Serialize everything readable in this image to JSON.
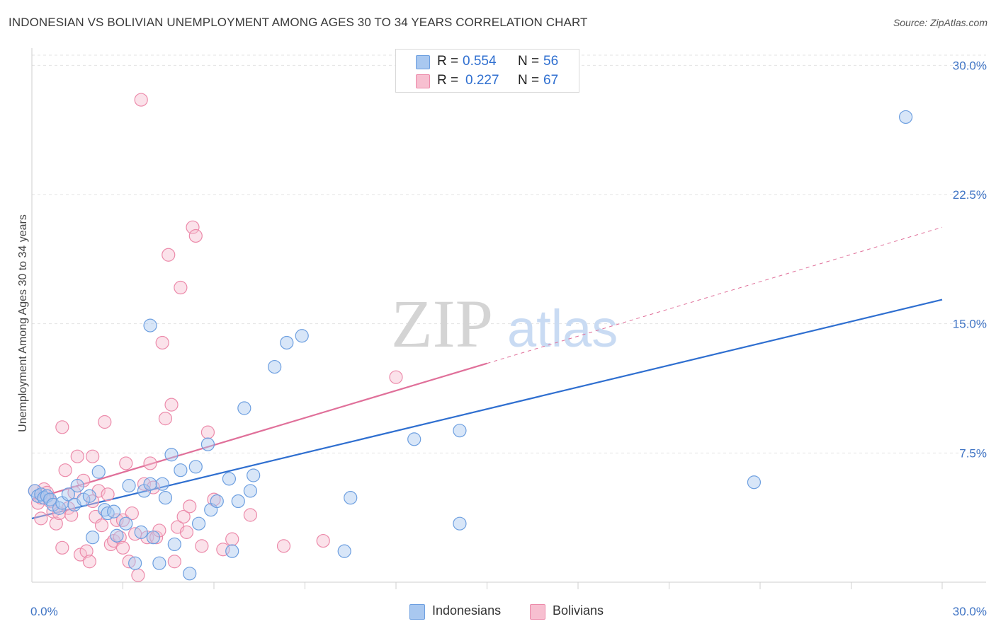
{
  "title": "INDONESIAN VS BOLIVIAN UNEMPLOYMENT AMONG AGES 30 TO 34 YEARS CORRELATION CHART",
  "source": "Source: ZipAtlas.com",
  "watermark": {
    "zip": "ZIP",
    "atlas": "atlas"
  },
  "legend": {
    "indonesians": {
      "r_label": "R =",
      "r_value": "0.554",
      "n_label": "N =",
      "n_value": "56"
    },
    "bolivians": {
      "r_label": "R =",
      "r_value": "0.227",
      "n_label": "N =",
      "n_value": "67"
    }
  },
  "bottom_legend": {
    "indonesians": "Indonesians",
    "bolivians": "Bolivians"
  },
  "colors": {
    "indonesians_fill": "#a9c8f0",
    "indonesians_stroke": "#6d9fe0",
    "indonesians_line": "#2f6fd0",
    "bolivians_fill": "#f7bfd0",
    "bolivians_stroke": "#ec8aaa",
    "bolivians_line": "#e0709a",
    "grid": "#e3e3e3",
    "axis_label": "#3e73c4"
  },
  "chart_data": {
    "type": "scatter",
    "title": "INDONESIAN VS BOLIVIAN UNEMPLOYMENT AMONG AGES 30 TO 34 YEARS CORRELATION CHART",
    "xlabel": "",
    "ylabel": "Unemployment Among Ages 30 to 34 years",
    "xlim": [
      0,
      30
    ],
    "ylim": [
      0,
      31
    ],
    "x_tick_labels": [
      "0.0%",
      "30.0%"
    ],
    "y_ticks": [
      7.5,
      15.0,
      22.5,
      30.0
    ],
    "y_tick_labels": [
      "7.5%",
      "15.0%",
      "22.5%",
      "30.0%"
    ],
    "grid": true,
    "legend_position": "top-center",
    "series": [
      {
        "name": "Indonesians",
        "r": 0.554,
        "n": 56,
        "trend": {
          "x0": 0,
          "y0": 3.7,
          "x1": 30,
          "y1": 16.4
        },
        "points": [
          [
            0.1,
            5.3
          ],
          [
            0.2,
            5.0
          ],
          [
            0.3,
            5.1
          ],
          [
            0.4,
            4.9
          ],
          [
            0.5,
            5.0
          ],
          [
            0.6,
            4.8
          ],
          [
            0.7,
            4.5
          ],
          [
            0.9,
            4.3
          ],
          [
            1.0,
            4.6
          ],
          [
            1.2,
            5.1
          ],
          [
            1.4,
            4.5
          ],
          [
            1.5,
            5.6
          ],
          [
            1.7,
            4.8
          ],
          [
            1.9,
            5.0
          ],
          [
            2.0,
            2.6
          ],
          [
            2.2,
            6.4
          ],
          [
            2.4,
            4.2
          ],
          [
            2.5,
            4.0
          ],
          [
            2.7,
            4.1
          ],
          [
            2.8,
            2.7
          ],
          [
            3.1,
            3.4
          ],
          [
            3.2,
            5.6
          ],
          [
            3.4,
            1.1
          ],
          [
            3.6,
            2.9
          ],
          [
            3.7,
            5.3
          ],
          [
            3.9,
            5.7
          ],
          [
            3.9,
            14.9
          ],
          [
            4.0,
            2.6
          ],
          [
            4.2,
            1.1
          ],
          [
            4.3,
            5.7
          ],
          [
            4.4,
            4.9
          ],
          [
            4.6,
            7.4
          ],
          [
            4.7,
            2.2
          ],
          [
            4.9,
            6.5
          ],
          [
            5.2,
            0.5
          ],
          [
            5.4,
            6.7
          ],
          [
            5.5,
            3.4
          ],
          [
            5.8,
            8.0
          ],
          [
            5.9,
            4.2
          ],
          [
            6.1,
            4.7
          ],
          [
            6.5,
            6.0
          ],
          [
            6.6,
            1.8
          ],
          [
            6.8,
            4.7
          ],
          [
            7.0,
            10.1
          ],
          [
            7.2,
            5.3
          ],
          [
            7.3,
            6.2
          ],
          [
            8.0,
            12.5
          ],
          [
            8.4,
            13.9
          ],
          [
            8.9,
            14.3
          ],
          [
            10.3,
            1.8
          ],
          [
            10.5,
            4.9
          ],
          [
            12.6,
            8.3
          ],
          [
            14.1,
            3.4
          ],
          [
            14.1,
            8.8
          ],
          [
            23.8,
            5.8
          ],
          [
            28.8,
            27.0
          ]
        ]
      },
      {
        "name": "Bolivians",
        "r": 0.227,
        "n": 67,
        "trend": {
          "x0": 0,
          "y0": 4.8,
          "x1": 15,
          "y1": 12.7
        },
        "trend_dashed": {
          "x0": 15,
          "y0": 12.7,
          "x1": 30,
          "y1": 20.6
        },
        "points": [
          [
            0.1,
            5.3
          ],
          [
            0.2,
            4.6
          ],
          [
            0.3,
            4.9
          ],
          [
            0.4,
            5.4
          ],
          [
            0.5,
            5.2
          ],
          [
            0.6,
            4.7
          ],
          [
            0.7,
            4.1
          ],
          [
            0.8,
            3.4
          ],
          [
            0.9,
            4.0
          ],
          [
            1.0,
            9.0
          ],
          [
            1.1,
            6.5
          ],
          [
            1.2,
            4.3
          ],
          [
            1.3,
            3.9
          ],
          [
            1.4,
            5.2
          ],
          [
            1.5,
            7.3
          ],
          [
            1.6,
            1.6
          ],
          [
            1.7,
            5.9
          ],
          [
            1.8,
            1.8
          ],
          [
            1.9,
            1.2
          ],
          [
            2.0,
            7.3
          ],
          [
            2.1,
            3.8
          ],
          [
            2.2,
            5.3
          ],
          [
            2.3,
            3.3
          ],
          [
            2.4,
            9.3
          ],
          [
            2.5,
            5.1
          ],
          [
            2.6,
            2.2
          ],
          [
            2.7,
            2.4
          ],
          [
            2.8,
            3.6
          ],
          [
            2.9,
            2.6
          ],
          [
            3.0,
            3.6
          ],
          [
            3.1,
            6.9
          ],
          [
            3.2,
            1.2
          ],
          [
            3.3,
            4.0
          ],
          [
            3.4,
            2.8
          ],
          [
            3.5,
            0.4
          ],
          [
            3.6,
            28.0
          ],
          [
            3.7,
            5.7
          ],
          [
            3.8,
            2.6
          ],
          [
            3.9,
            6.9
          ],
          [
            4.0,
            5.5
          ],
          [
            4.1,
            2.6
          ],
          [
            4.2,
            3.0
          ],
          [
            4.3,
            13.9
          ],
          [
            4.4,
            9.5
          ],
          [
            4.5,
            19.0
          ],
          [
            4.6,
            10.3
          ],
          [
            4.7,
            1.2
          ],
          [
            4.8,
            3.2
          ],
          [
            4.9,
            17.1
          ],
          [
            5.0,
            3.8
          ],
          [
            5.1,
            2.9
          ],
          [
            5.2,
            4.4
          ],
          [
            5.3,
            20.6
          ],
          [
            5.4,
            20.1
          ],
          [
            5.6,
            2.1
          ],
          [
            5.8,
            8.7
          ],
          [
            6.0,
            4.8
          ],
          [
            6.3,
            1.9
          ],
          [
            6.6,
            2.5
          ],
          [
            7.2,
            3.9
          ],
          [
            8.3,
            2.1
          ],
          [
            9.6,
            2.4
          ],
          [
            12.0,
            11.9
          ],
          [
            0.3,
            3.7
          ],
          [
            1.0,
            2.0
          ],
          [
            2.0,
            4.7
          ],
          [
            3.0,
            2.0
          ]
        ]
      }
    ]
  }
}
